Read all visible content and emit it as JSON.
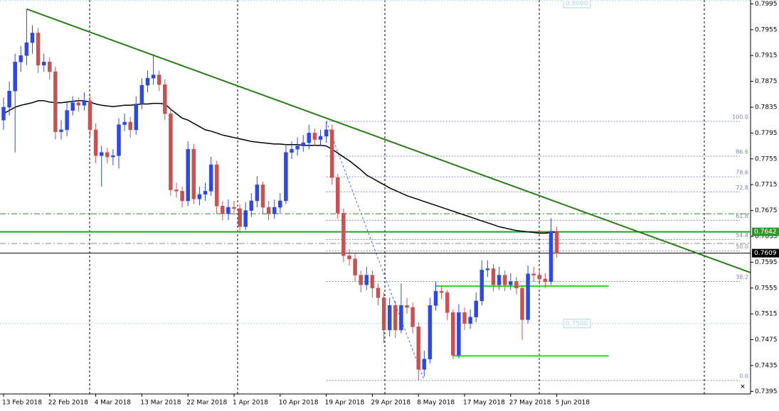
{
  "chart_data": {
    "type": "candlestick",
    "categories": [
      "13 Feb 2018",
      null,
      null,
      null,
      null,
      null,
      null,
      null,
      "22 Feb 2018",
      null,
      null,
      null,
      null,
      null,
      null,
      null,
      "4 Mar 2018",
      null,
      null,
      null,
      null,
      null,
      null,
      null,
      "13 Mar 2018",
      null,
      null,
      null,
      null,
      null,
      null,
      null,
      "22 Mar 2018",
      null,
      null,
      null,
      null,
      null,
      null,
      null,
      "1 Apr 2018",
      null,
      null,
      null,
      null,
      null,
      null,
      null,
      "10 Apr 2018",
      null,
      null,
      null,
      null,
      null,
      null,
      null,
      "19 Apr 2018",
      null,
      null,
      null,
      null,
      null,
      null,
      null,
      "29 Apr 2018",
      null,
      null,
      null,
      null,
      null,
      null,
      null,
      "8 May 2018",
      null,
      null,
      null,
      null,
      null,
      null,
      null,
      "17 May 2018",
      null,
      null,
      null,
      null,
      null,
      null,
      null,
      "27 May 2018",
      null,
      null,
      null,
      null,
      null,
      null,
      null,
      "5 Jun 2018"
    ],
    "open": [
      0.7815,
      0.7835,
      0.786,
      0.7905,
      0.7915,
      0.7935,
      0.795,
      0.79,
      0.7905,
      0.789,
      0.7797,
      0.78,
      0.783,
      0.7842,
      0.7838,
      0.7845,
      0.78,
      0.776,
      0.7765,
      0.7758,
      0.776,
      0.7808,
      0.7812,
      0.78,
      0.784,
      0.7869,
      0.788,
      0.7885,
      0.787,
      0.7825,
      0.7707,
      0.7705,
      0.769,
      0.777,
      0.7693,
      0.77,
      0.7705,
      0.7746,
      0.7682,
      0.767,
      0.768,
      0.7678,
      0.765,
      0.7675,
      0.769,
      0.7715,
      0.768,
      0.767,
      0.768,
      0.769,
      0.7765,
      0.777,
      0.7775,
      0.778,
      0.7795,
      0.7785,
      0.779,
      0.78,
      0.7726,
      0.7671,
      0.7605,
      0.76,
      0.7575,
      0.756,
      0.7575,
      0.7555,
      0.754,
      0.749,
      0.7528,
      0.749,
      0.7528,
      0.7525,
      0.7495,
      0.7429,
      0.7445,
      0.7528,
      0.755,
      0.7548,
      0.7517,
      0.7451,
      0.7517,
      0.75,
      0.751,
      0.7535,
      0.7583,
      0.7585,
      0.756,
      0.7575,
      0.756,
      0.7565,
      0.7555,
      0.7506,
      0.7577,
      0.7575,
      0.7569,
      0.7565,
      0.7643
    ],
    "high": [
      0.785,
      0.7875,
      0.7918,
      0.793,
      0.7987,
      0.7962,
      0.7958,
      0.7918,
      0.7912,
      0.7898,
      0.7815,
      0.7842,
      0.7852,
      0.785,
      0.7858,
      0.7852,
      0.781,
      0.7775,
      0.7772,
      0.777,
      0.7818,
      0.7825,
      0.782,
      0.7852,
      0.788,
      0.7892,
      0.7917,
      0.7892,
      0.7878,
      0.7832,
      0.7718,
      0.7712,
      0.7782,
      0.7778,
      0.7712,
      0.7718,
      0.7758,
      0.7752,
      0.769,
      0.7692,
      0.769,
      0.7685,
      0.7688,
      0.7702,
      0.7728,
      0.772,
      0.769,
      0.7692,
      0.7702,
      0.7778,
      0.7782,
      0.7788,
      0.7792,
      0.7808,
      0.7802,
      0.78,
      0.7813,
      0.7808,
      0.7732,
      0.7678,
      0.7615,
      0.7608,
      0.7582,
      0.7588,
      0.7582,
      0.7562,
      0.7548,
      0.754,
      0.7535,
      0.7562,
      0.754,
      0.7532,
      0.7502,
      0.7458,
      0.754,
      0.7565,
      0.7558,
      0.7552,
      0.7522,
      0.753,
      0.7525,
      0.7522,
      0.7548,
      0.7598,
      0.7598,
      0.7592,
      0.7588,
      0.7582,
      0.7578,
      0.7572,
      0.756,
      0.759,
      0.7588,
      0.7582,
      0.7578,
      0.7663,
      0.765
    ],
    "low": [
      0.78,
      0.7822,
      0.7765,
      0.789,
      0.79,
      0.7918,
      0.7888,
      0.789,
      0.7878,
      0.7785,
      0.7785,
      0.779,
      0.7822,
      0.7828,
      0.783,
      0.779,
      0.7748,
      0.7712,
      0.7748,
      0.7745,
      0.774,
      0.7798,
      0.7788,
      0.7792,
      0.7832,
      0.7858,
      0.787,
      0.786,
      0.7815,
      0.7698,
      0.7695,
      0.768,
      0.7682,
      0.7685,
      0.7683,
      0.769,
      0.7698,
      0.767,
      0.766,
      0.766,
      0.7668,
      0.764,
      0.7645,
      0.7665,
      0.768,
      0.767,
      0.766,
      0.7662,
      0.767,
      0.7685,
      0.7755,
      0.776,
      0.7766,
      0.777,
      0.7775,
      0.7776,
      0.778,
      0.7715,
      0.7662,
      0.7595,
      0.759,
      0.7565,
      0.7548,
      0.7552,
      0.754,
      0.7528,
      0.747,
      0.748,
      0.7478,
      0.7485,
      0.7515,
      0.7485,
      0.7412,
      0.7418,
      0.7438,
      0.752,
      0.7538,
      0.7505,
      0.7445,
      0.7446,
      0.749,
      0.7492,
      0.7502,
      0.7528,
      0.7572,
      0.755,
      0.7552,
      0.755,
      0.7552,
      0.7545,
      0.7475,
      0.75,
      0.7565,
      0.756,
      0.7555,
      0.756,
      0.7602
    ],
    "close": [
      0.7835,
      0.786,
      0.7905,
      0.7915,
      0.7935,
      0.795,
      0.79,
      0.7905,
      0.789,
      0.7797,
      0.78,
      0.783,
      0.7842,
      0.7838,
      0.7845,
      0.78,
      0.776,
      0.7765,
      0.7758,
      0.776,
      0.7808,
      0.7812,
      0.78,
      0.784,
      0.7869,
      0.788,
      0.7885,
      0.787,
      0.7825,
      0.7707,
      0.7705,
      0.769,
      0.777,
      0.7693,
      0.77,
      0.7705,
      0.7746,
      0.7682,
      0.767,
      0.768,
      0.7678,
      0.765,
      0.7675,
      0.769,
      0.7715,
      0.768,
      0.767,
      0.768,
      0.769,
      0.7765,
      0.777,
      0.7775,
      0.778,
      0.7795,
      0.7785,
      0.779,
      0.78,
      0.7726,
      0.7671,
      0.7605,
      0.76,
      0.7575,
      0.756,
      0.7575,
      0.7555,
      0.754,
      0.749,
      0.7528,
      0.749,
      0.7528,
      0.7525,
      0.7495,
      0.7429,
      0.7445,
      0.7528,
      0.755,
      0.7548,
      0.7517,
      0.7451,
      0.7517,
      0.75,
      0.751,
      0.7535,
      0.7583,
      0.7585,
      0.756,
      0.7575,
      0.756,
      0.7565,
      0.7555,
      0.7506,
      0.7577,
      0.7575,
      0.7569,
      0.7565,
      0.7643,
      0.7609
    ],
    "ma_values": [
      0.7825,
      0.783,
      0.7835,
      0.7838,
      0.784,
      0.7842,
      0.7845,
      0.7845,
      0.7843,
      0.7842,
      0.7842,
      0.7843,
      0.7844,
      0.7845,
      0.7845,
      0.7843,
      0.784,
      0.7838,
      0.7837,
      0.7836,
      0.7837,
      0.7838,
      0.7838,
      0.7839,
      0.784,
      0.784,
      0.7841,
      0.7841,
      0.784,
      0.7832,
      0.7825,
      0.7818,
      0.7815,
      0.781,
      0.7805,
      0.78,
      0.7798,
      0.7795,
      0.7792,
      0.779,
      0.7788,
      0.7786,
      0.7784,
      0.7782,
      0.7781,
      0.778,
      0.7779,
      0.7778,
      0.7778,
      0.7777,
      0.7777,
      0.7777,
      0.7776,
      0.7776,
      0.7776,
      0.7776,
      0.7775,
      0.777,
      0.7764,
      0.7758,
      0.7752,
      0.7745,
      0.7738,
      0.773,
      0.7725,
      0.772,
      0.7715,
      0.771,
      0.7706,
      0.7702,
      0.7698,
      0.7695,
      0.7692,
      0.7689,
      0.7686,
      0.7683,
      0.768,
      0.7677,
      0.7674,
      0.7671,
      0.7668,
      0.7665,
      0.7662,
      0.7659,
      0.7656,
      0.7653,
      0.765,
      0.7648,
      0.7646,
      0.7644,
      0.7643,
      0.7642,
      0.7641,
      0.764,
      0.764,
      0.7641,
      0.7642
    ],
    "ma_color": "#000000",
    "bull_color": "#2f48e0",
    "bear_color": "#c25454",
    "ylim": [
      0.7391,
      0.8001
    ],
    "yticks": [
      0.7995,
      0.7955,
      0.7915,
      0.7875,
      0.7835,
      0.7795,
      0.7755,
      0.7715,
      0.7675,
      0.7635,
      0.7595,
      0.7555,
      0.7515,
      0.7475,
      0.7435,
      0.7395
    ],
    "grid": false,
    "levels": [
      {
        "value": 0.7642,
        "color": "#2a9a2a",
        "style": "solid"
      },
      {
        "value": 0.7609,
        "color": "#000000",
        "style": "solid"
      },
      {
        "value": 0.767,
        "color": "#2a8a2a",
        "style": "dashdot"
      },
      {
        "value": 0.7624,
        "color": "#888888",
        "style": "dashdot"
      }
    ],
    "labeled_levels": [
      {
        "value": 0.8,
        "label": "0.8000",
        "color": "#a8d8e0"
      },
      {
        "value": 0.75,
        "label": "0.7500",
        "color": "#a8d8e0"
      }
    ],
    "segments": [
      {
        "value": 0.7558,
        "from_bar": 75,
        "to_bar": 105,
        "color": "#22dd22"
      },
      {
        "value": 0.745,
        "from_bar": 78,
        "to_bar": 105,
        "color": "#22dd22"
      }
    ],
    "price_labels": [
      {
        "value": 0.7642,
        "color": "#2a9a2a"
      },
      {
        "value": 0.7609,
        "color": "#000000"
      }
    ],
    "trendline": {
      "from_bar": 4,
      "to_bar": 129.6,
      "to_value": 0.7579,
      "color": "#2a7a1a"
    },
    "fib": {
      "from_bar": 56,
      "to_bar": 72,
      "color": "#7a8aa0",
      "levels": [
        {
          "value": 100,
          "label": "100.0"
        },
        86.6,
        78.6,
        72.8,
        61.8,
        54.4,
        {
          "value": 50,
          "label": "50.0"
        },
        38.2,
        {
          "value": 0,
          "label": "0.0"
        }
      ]
    }
  }
}
